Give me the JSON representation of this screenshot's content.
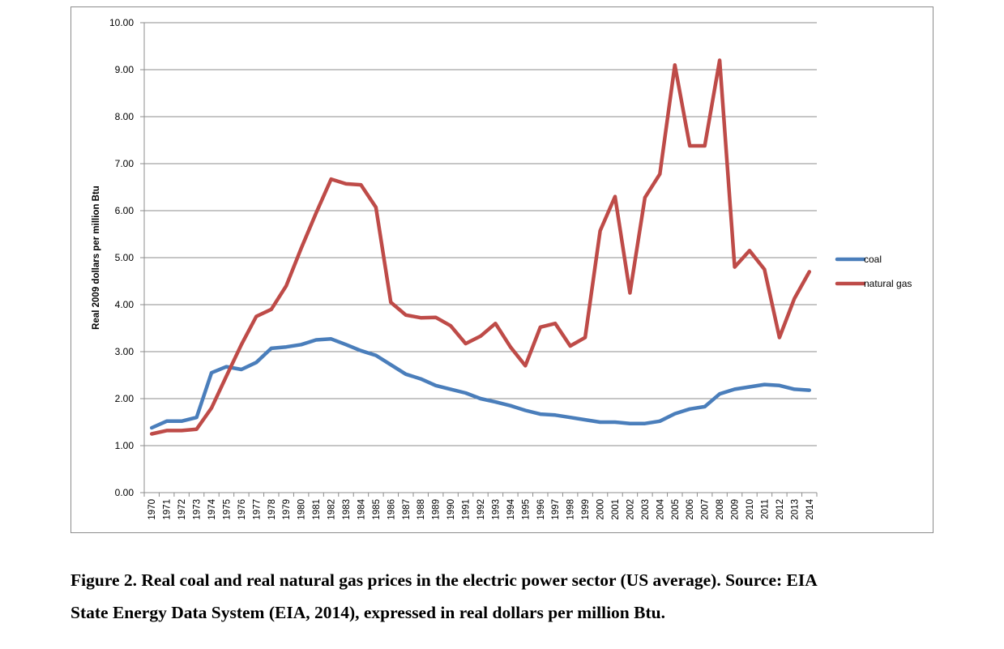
{
  "chart_data": {
    "type": "line",
    "ylabel": "Real 2009 dollars per million Btu",
    "xlabel": "",
    "ylim": [
      0,
      10
    ],
    "yticks": [
      "0.00",
      "1.00",
      "2.00",
      "3.00",
      "4.00",
      "5.00",
      "6.00",
      "7.00",
      "8.00",
      "9.00",
      "10.00"
    ],
    "grid": true,
    "legend_position": "right",
    "categories": [
      "1970",
      "1971",
      "1972",
      "1973",
      "1974",
      "1975",
      "1976",
      "1977",
      "1978",
      "1979",
      "1980",
      "1981",
      "1982",
      "1983",
      "1984",
      "1985",
      "1986",
      "1987",
      "1988",
      "1989",
      "1990",
      "1991",
      "1992",
      "1993",
      "1994",
      "1995",
      "1996",
      "1997",
      "1998",
      "1999",
      "2000",
      "2001",
      "2002",
      "2003",
      "2004",
      "2005",
      "2006",
      "2007",
      "2008",
      "2009",
      "2010",
      "2011",
      "2012",
      "2013",
      "2014"
    ],
    "series": [
      {
        "name": "coal",
        "color": "#4a7ebb",
        "values": [
          1.38,
          1.52,
          1.52,
          1.6,
          2.55,
          2.68,
          2.62,
          2.77,
          3.07,
          3.1,
          3.15,
          3.25,
          3.27,
          3.15,
          3.02,
          2.92,
          2.72,
          2.52,
          2.42,
          2.28,
          2.2,
          2.12,
          2.0,
          1.93,
          1.85,
          1.75,
          1.67,
          1.65,
          1.6,
          1.55,
          1.5,
          1.5,
          1.47,
          1.47,
          1.52,
          1.68,
          1.78,
          1.83,
          2.1,
          2.2,
          2.25,
          2.3,
          2.28,
          2.2,
          2.18
        ]
      },
      {
        "name": "natural gas",
        "color": "#be4b48",
        "values": [
          1.25,
          1.32,
          1.32,
          1.35,
          1.8,
          2.48,
          3.15,
          3.75,
          3.9,
          4.4,
          5.2,
          5.95,
          6.67,
          6.57,
          6.55,
          6.07,
          4.05,
          3.78,
          3.72,
          3.73,
          3.55,
          3.17,
          3.33,
          3.6,
          3.1,
          2.7,
          3.52,
          3.6,
          3.12,
          3.3,
          5.57,
          6.3,
          4.25,
          6.28,
          6.78,
          9.1,
          7.38,
          7.38,
          9.2,
          4.8,
          5.15,
          4.75,
          3.3,
          4.13,
          4.7
        ]
      }
    ]
  },
  "caption": {
    "line1": "Figure 2. Real coal and real natural gas prices in the electric power sector (US average). Source: EIA",
    "line2": "State Energy Data System (EIA, 2014), expressed in real dollars per million Btu."
  }
}
